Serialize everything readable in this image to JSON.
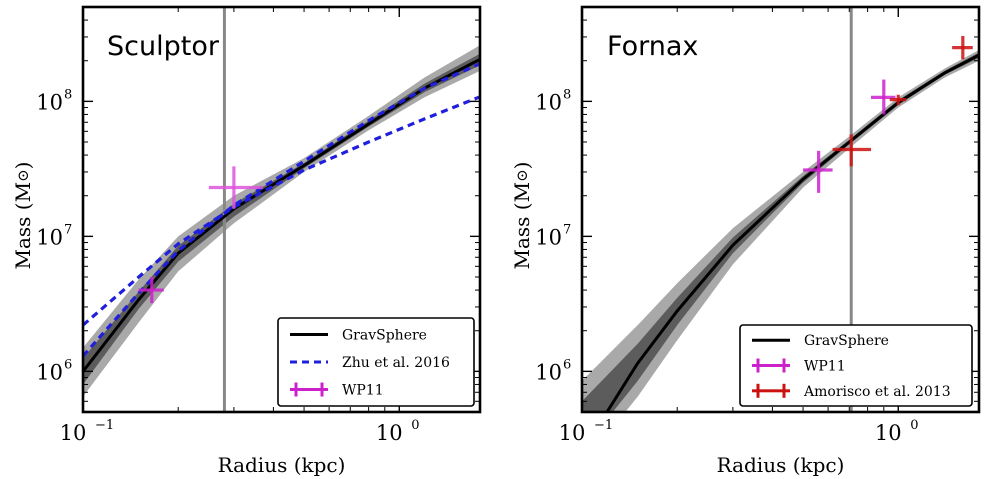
{
  "chart_data": [
    {
      "type": "line",
      "title": "Sculptor",
      "xlabel": "Radius (kpc)",
      "ylabel": "Mass (M",
      "ylabel_symbol": "⊙",
      "ylabel_close": ")",
      "x_scale": "log",
      "y_scale": "log",
      "xlim": [
        0.1,
        1.8
      ],
      "ylim": [
        500000,
        500000000
      ],
      "x_ticks": [
        {
          "value": 0.1,
          "base": "10",
          "exp": "−1"
        },
        {
          "value": 1.0,
          "base": "10",
          "exp": "0"
        }
      ],
      "y_ticks": [
        {
          "value": 1000000,
          "base": "10",
          "exp": "6"
        },
        {
          "value": 10000000,
          "base": "10",
          "exp": "7"
        },
        {
          "value": 100000000,
          "base": "10",
          "exp": "8"
        }
      ],
      "vline": {
        "x": 0.28,
        "color": "#888888"
      },
      "bands": {
        "x": [
          0.1,
          0.15,
          0.2,
          0.3,
          0.5,
          0.8,
          1.2,
          1.8
        ],
        "outer_lo": [
          650000,
          2300000,
          5500000,
          12500000,
          30000000,
          61000000,
          107000000,
          168000000
        ],
        "outer_hi": [
          1500000,
          4800000,
          10000000,
          20000000,
          38000000,
          78000000,
          150000000,
          260000000
        ],
        "inner_lo": [
          800000,
          2900000,
          6500000,
          14000000,
          32000000,
          65000000,
          117000000,
          185000000
        ],
        "inner_hi": [
          1250000,
          3900000,
          8500000,
          17500000,
          35000000,
          72000000,
          135000000,
          225000000
        ]
      },
      "series": [
        {
          "name": "GravSphere",
          "style": "solid",
          "color": "#000000",
          "x": [
            0.1,
            0.15,
            0.2,
            0.3,
            0.5,
            0.8,
            1.2,
            1.8
          ],
          "y": [
            1000000,
            3400000,
            7500000,
            16000000,
            33500000,
            68000000,
            125000000,
            205000000
          ]
        },
        {
          "name": "Zhu et al. 2016",
          "style": "dashed",
          "color": "#1f1fdd",
          "x": [
            0.1,
            0.15,
            0.2,
            0.3,
            0.5,
            0.8,
            1.2,
            1.8
          ],
          "y": [
            2200000,
            5000000,
            8800000,
            16500000,
            31000000,
            50000000,
            74000000,
            108000000
          ]
        },
        {
          "name": "Zhu et al. 2016 (upper)",
          "style": "dashed",
          "color": "#1f1fdd",
          "x": [
            0.1,
            0.15,
            0.2,
            0.3,
            0.5,
            0.8,
            1.2,
            1.8
          ],
          "y": [
            1300000,
            3800000,
            7800000,
            17000000,
            36000000,
            72000000,
            125000000,
            190000000
          ]
        }
      ],
      "errorbars": [
        {
          "name": "WP11",
          "color": "#cc22cc",
          "x": 0.165,
          "y": 4000000,
          "xerr": [
            0.15,
            0.18
          ],
          "yerr": [
            3200000,
            5000000
          ]
        },
        {
          "name": "WP11",
          "color": "#dd55dd",
          "x": 0.3,
          "y": 23000000,
          "xerr": [
            0.25,
            0.37
          ],
          "yerr": [
            16000000,
            33000000
          ]
        }
      ],
      "legend": {
        "position": "lower-right",
        "entries": [
          {
            "label": "GravSphere",
            "kind": "line",
            "color": "#000000"
          },
          {
            "label": "Zhu et al. 2016",
            "kind": "dashed",
            "color": "#1f1fdd"
          },
          {
            "label": "WP11",
            "kind": "errorbar",
            "color": "#cc22cc"
          }
        ]
      }
    },
    {
      "type": "line",
      "title": "Fornax",
      "xlabel": "Radius (kpc)",
      "ylabel": "Mass (M",
      "ylabel_symbol": "⊙",
      "ylabel_close": ")",
      "x_scale": "log",
      "y_scale": "log",
      "xlim": [
        0.1,
        1.8
      ],
      "ylim": [
        500000,
        500000000
      ],
      "x_ticks": [
        {
          "value": 0.1,
          "base": "10",
          "exp": "−1"
        },
        {
          "value": 1.0,
          "base": "10",
          "exp": "0"
        }
      ],
      "y_ticks": [
        {
          "value": 1000000,
          "base": "10",
          "exp": "6"
        },
        {
          "value": 10000000,
          "base": "10",
          "exp": "7"
        },
        {
          "value": 100000000,
          "base": "10",
          "exp": "8"
        }
      ],
      "vline": {
        "x": 0.71,
        "color": "#888888"
      },
      "bands": {
        "x": [
          0.1,
          0.15,
          0.2,
          0.3,
          0.5,
          0.7,
          1.0,
          1.4,
          1.8
        ],
        "outer_lo": [
          200000,
          650000,
          1700000,
          6200000,
          23000000,
          45000000,
          90000000,
          150000000,
          200000000
        ],
        "outer_hi": [
          850000,
          2200000,
          4500000,
          11500000,
          30000000,
          55000000,
          107000000,
          175000000,
          240000000
        ],
        "inner_lo": [
          260000,
          850000,
          2200000,
          7500000,
          25000000,
          48000000,
          94000000,
          157000000,
          210000000
        ],
        "inner_hi": [
          600000,
          1600000,
          3500000,
          9800000,
          28000000,
          52000000,
          102000000,
          168000000,
          230000000
        ]
      },
      "series": [
        {
          "name": "GravSphere",
          "style": "solid",
          "color": "#000000",
          "x": [
            0.12,
            0.15,
            0.2,
            0.3,
            0.5,
            0.7,
            1.0,
            1.4,
            1.8
          ],
          "y": [
            500000,
            1150000,
            2800000,
            8600000,
            26500000,
            50000000,
            98000000,
            162000000,
            220000000
          ]
        }
      ],
      "errorbars": [
        {
          "name": "WP11",
          "color": "#cc22cc",
          "x": 0.56,
          "y": 31000000,
          "xerr": [
            0.5,
            0.62
          ],
          "yerr": [
            21000000,
            43000000
          ]
        },
        {
          "name": "WP11",
          "color": "#cc22cc",
          "x": 0.9,
          "y": 107000000,
          "xerr": [
            0.82,
            0.98
          ],
          "yerr": [
            80000000,
            145000000
          ]
        },
        {
          "name": "Amorisco et al. 2013",
          "color": "#cc1111",
          "x": 0.71,
          "y": 44000000,
          "xerr": [
            0.62,
            0.82
          ],
          "yerr": [
            33000000,
            57000000
          ]
        },
        {
          "name": "Amorisco et al. 2013",
          "color": "#cc1111",
          "x": 1.0,
          "y": 103000000,
          "xerr": [
            0.94,
            1.06
          ],
          "yerr": [
            94000000,
            112000000
          ]
        },
        {
          "name": "Amorisco et al. 2013",
          "color": "#cc1111",
          "x": 1.6,
          "y": 250000000,
          "xerr": [
            1.48,
            1.72
          ],
          "yerr": [
            205000000,
            305000000
          ]
        }
      ],
      "legend": {
        "position": "lower-right",
        "entries": [
          {
            "label": "GravSphere",
            "kind": "line",
            "color": "#000000"
          },
          {
            "label": "WP11",
            "kind": "errorbar",
            "color": "#cc22cc"
          },
          {
            "label": "Amorisco et al. 2013",
            "kind": "errorbar",
            "color": "#cc1111"
          }
        ]
      }
    }
  ]
}
